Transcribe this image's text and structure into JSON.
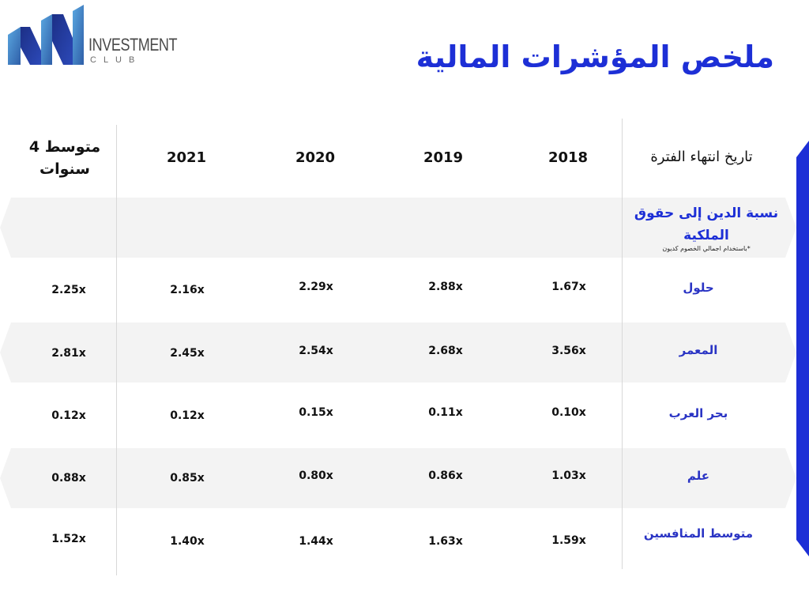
{
  "logo": {
    "line1": "INVESTMENT",
    "line2": "CLUB"
  },
  "title": "ملخص المؤشرات المالية",
  "header": {
    "period_label": "تاريخ انتهاء الفترة",
    "years": [
      "2018",
      "2019",
      "2020",
      "2021"
    ],
    "average_label": "متوسط 4 سنوات"
  },
  "section": {
    "title": "نسبة الدين إلى حقوق الملكية",
    "note": "*باستخدام اجمالي الخصوم كديون"
  },
  "rows": [
    {
      "label": "حلول",
      "values": [
        "1.67x",
        "2.88x",
        "2.29x",
        "2.16x"
      ],
      "average": "2.25x"
    },
    {
      "label": "المعمر",
      "values": [
        "3.56x",
        "2.68x",
        "2.54x",
        "2.45x"
      ],
      "average": "2.81x"
    },
    {
      "label": "بحر العرب",
      "values": [
        "0.10x",
        "0.11x",
        "0.15x",
        "0.12x"
      ],
      "average": "0.12x"
    },
    {
      "label": "علم",
      "values": [
        "1.03x",
        "0.86x",
        "0.80x",
        "0.85x"
      ],
      "average": "0.88x"
    },
    {
      "label": "متوسط المنافسين",
      "values": [
        "1.59x",
        "1.63x",
        "1.44x",
        "1.40x"
      ],
      "average": "1.52x"
    }
  ],
  "colors": {
    "accent": "#1d2fd6",
    "band": "#f3f3f3"
  }
}
